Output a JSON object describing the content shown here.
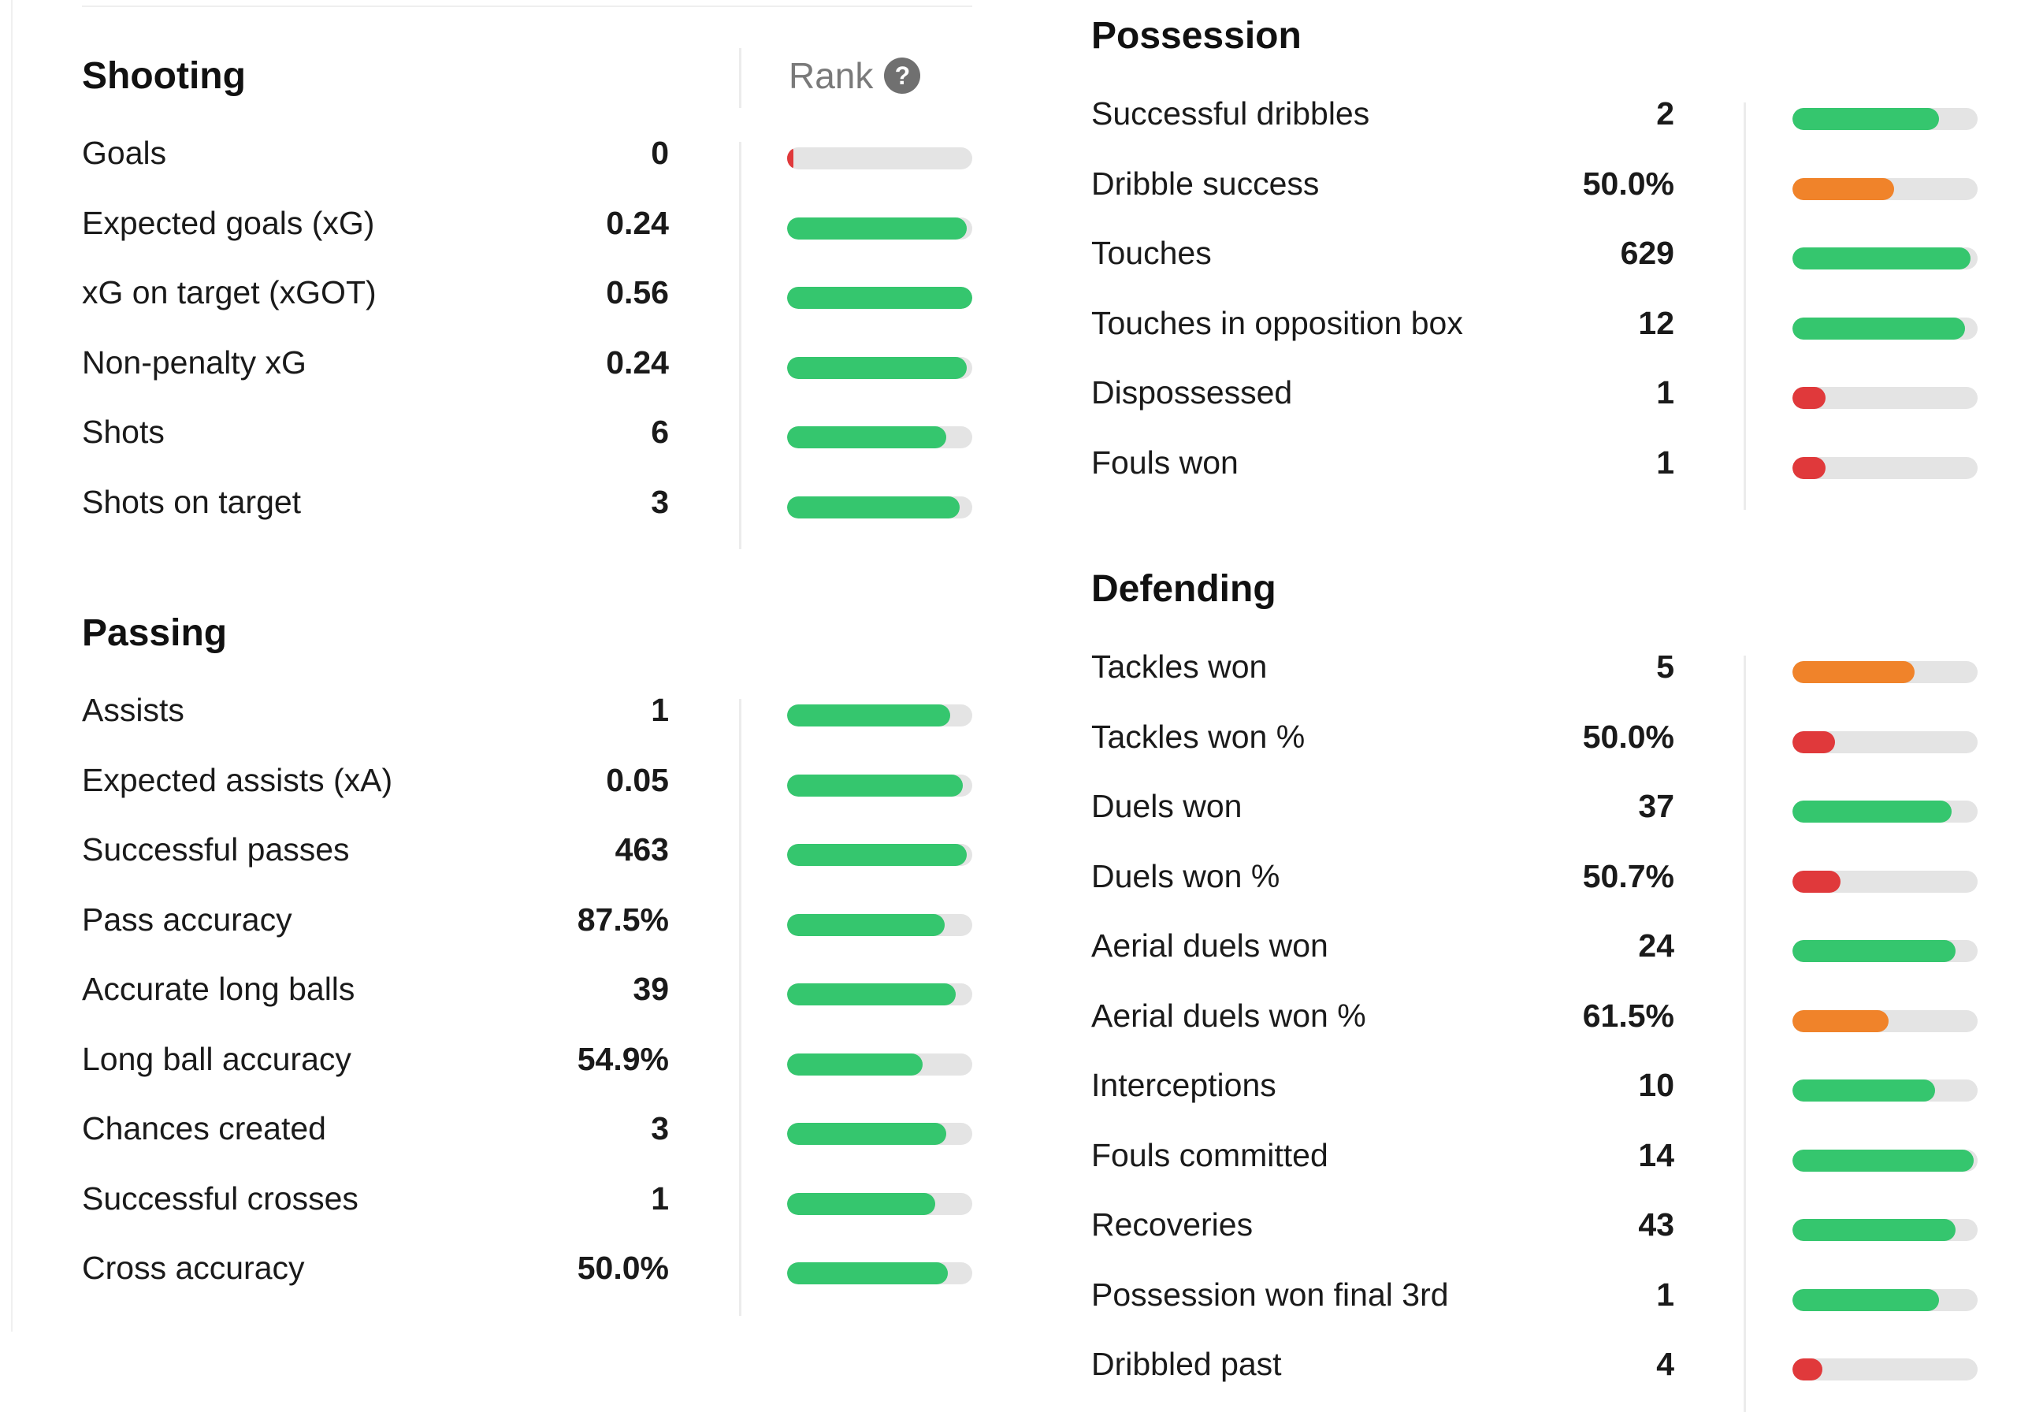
{
  "rank_header": {
    "label": "Rank",
    "help_icon": "?"
  },
  "colors": {
    "high": "#35c66e",
    "mid": "#f0832a",
    "low": "#e0393b",
    "track": "#e4e4e4"
  },
  "left_sections": [
    {
      "title": "Shooting",
      "rows": [
        {
          "label": "Goals",
          "value": "0",
          "rank": 0.02,
          "level": "low"
        },
        {
          "label": "Expected goals (xG)",
          "value": "0.24",
          "rank": 0.97,
          "level": "high"
        },
        {
          "label": "xG on target (xGOT)",
          "value": "0.56",
          "rank": 1.0,
          "level": "high"
        },
        {
          "label": "Non-penalty xG",
          "value": "0.24",
          "rank": 0.97,
          "level": "high"
        },
        {
          "label": "Shots",
          "value": "6",
          "rank": 0.86,
          "level": "high"
        },
        {
          "label": "Shots on target",
          "value": "3",
          "rank": 0.93,
          "level": "high"
        }
      ]
    },
    {
      "title": "Passing",
      "rows": [
        {
          "label": "Assists",
          "value": "1",
          "rank": 0.88,
          "level": "high"
        },
        {
          "label": "Expected assists (xA)",
          "value": "0.05",
          "rank": 0.95,
          "level": "high"
        },
        {
          "label": "Successful passes",
          "value": "463",
          "rank": 0.97,
          "level": "high"
        },
        {
          "label": "Pass accuracy",
          "value": "87.5%",
          "rank": 0.85,
          "level": "high"
        },
        {
          "label": "Accurate long balls",
          "value": "39",
          "rank": 0.91,
          "level": "high"
        },
        {
          "label": "Long ball accuracy",
          "value": "54.9%",
          "rank": 0.73,
          "level": "high"
        },
        {
          "label": "Chances created",
          "value": "3",
          "rank": 0.86,
          "level": "high"
        },
        {
          "label": "Successful crosses",
          "value": "1",
          "rank": 0.8,
          "level": "high"
        },
        {
          "label": "Cross accuracy",
          "value": "50.0%",
          "rank": 0.87,
          "level": "high"
        }
      ]
    }
  ],
  "right_sections": [
    {
      "title": "Possession",
      "rows": [
        {
          "label": "Successful dribbles",
          "value": "2",
          "rank": 0.79,
          "level": "high"
        },
        {
          "label": "Dribble success",
          "value": "50.0%",
          "rank": 0.55,
          "level": "mid"
        },
        {
          "label": "Touches",
          "value": "629",
          "rank": 0.96,
          "level": "high"
        },
        {
          "label": "Touches in opposition box",
          "value": "12",
          "rank": 0.93,
          "level": "high"
        },
        {
          "label": "Dispossessed",
          "value": "1",
          "rank": 0.18,
          "level": "low"
        },
        {
          "label": "Fouls won",
          "value": "1",
          "rank": 0.18,
          "level": "low"
        }
      ]
    },
    {
      "title": "Defending",
      "rows": [
        {
          "label": "Tackles won",
          "value": "5",
          "rank": 0.66,
          "level": "mid"
        },
        {
          "label": "Tackles won %",
          "value": "50.0%",
          "rank": 0.23,
          "level": "low"
        },
        {
          "label": "Duels won",
          "value": "37",
          "rank": 0.86,
          "level": "high"
        },
        {
          "label": "Duels won %",
          "value": "50.7%",
          "rank": 0.26,
          "level": "low"
        },
        {
          "label": "Aerial duels won",
          "value": "24",
          "rank": 0.88,
          "level": "high"
        },
        {
          "label": "Aerial duels won %",
          "value": "61.5%",
          "rank": 0.52,
          "level": "mid"
        },
        {
          "label": "Interceptions",
          "value": "10",
          "rank": 0.77,
          "level": "high"
        },
        {
          "label": "Fouls committed",
          "value": "14",
          "rank": 0.98,
          "level": "high"
        },
        {
          "label": "Recoveries",
          "value": "43",
          "rank": 0.88,
          "level": "high"
        },
        {
          "label": "Possession won final 3rd",
          "value": "1",
          "rank": 0.79,
          "level": "high"
        },
        {
          "label": "Dribbled past",
          "value": "4",
          "rank": 0.16,
          "level": "low"
        }
      ]
    }
  ]
}
